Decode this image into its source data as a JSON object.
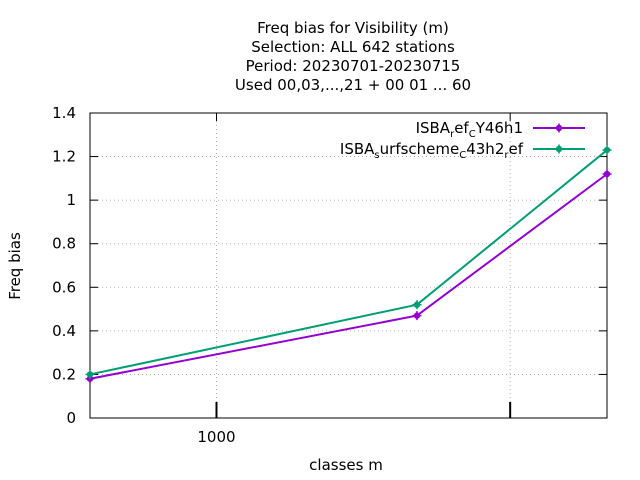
{
  "chart_data": {
    "type": "line",
    "title_lines": [
      "Freq bias  for Visibility (m)",
      "Selection: ALL    642 stations",
      "Period: 20230701-20230715",
      "Used  00,03,...,21  + 00 01 ... 60"
    ],
    "xlabel": "classes m",
    "ylabel": "Freq bias",
    "x_scale": "log",
    "xlim": [
      500,
      8500
    ],
    "ylim": [
      0,
      1.4
    ],
    "x_ticks": [
      {
        "value": 1000,
        "label": "1000"
      },
      {
        "value": 5000,
        "label": ""
      }
    ],
    "y_ticks": [
      {
        "value": 0,
        "label": "0"
      },
      {
        "value": 0.2,
        "label": "0.2"
      },
      {
        "value": 0.4,
        "label": "0.4"
      },
      {
        "value": 0.6,
        "label": "0.6"
      },
      {
        "value": 0.8,
        "label": "0.8"
      },
      {
        "value": 1.0,
        "label": "1"
      },
      {
        "value": 1.2,
        "label": "1.2"
      },
      {
        "value": 1.4,
        "label": "1.4"
      }
    ],
    "grid": true,
    "legend_position": "top-right",
    "series": [
      {
        "name_parts": [
          [
            "ISBA",
            ""
          ],
          [
            "r",
            "sub"
          ],
          [
            "ef",
            ""
          ],
          [
            "C",
            "sub"
          ],
          [
            "Y46h1",
            ""
          ]
        ],
        "color": "#9400d3",
        "x": [
          500,
          3000,
          8500
        ],
        "y": [
          0.18,
          0.47,
          1.12
        ]
      },
      {
        "name_parts": [
          [
            "ISBA",
            ""
          ],
          [
            "s",
            "sub"
          ],
          [
            "urfscheme",
            ""
          ],
          [
            "C",
            "sub"
          ],
          [
            "43h2",
            ""
          ],
          [
            "r",
            "sub"
          ],
          [
            "ef",
            ""
          ]
        ],
        "color": "#009e73",
        "x": [
          500,
          3000,
          8500
        ],
        "y": [
          0.2,
          0.52,
          1.23
        ]
      }
    ]
  }
}
